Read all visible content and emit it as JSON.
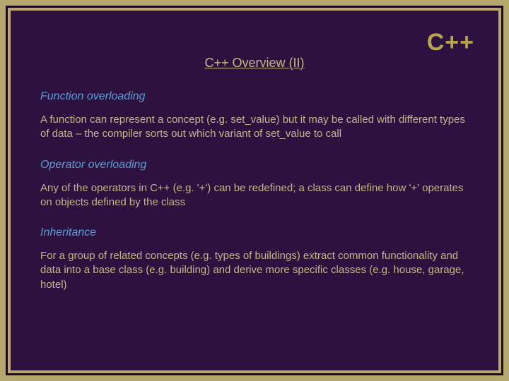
{
  "page": {
    "background_color": "#b8a870",
    "slide_background": "#2d1240",
    "border_color": "#1a0826",
    "text_color": "#c4b888",
    "heading_color": "#5a9fd4",
    "logo_color": "#b8a44a"
  },
  "logo": "C++",
  "title": "C++ Overview (II)",
  "sections": [
    {
      "heading": "Function overloading",
      "body": "A function can represent a concept (e.g. set_value) but it may be called with different types of data – the compiler sorts out which variant of set_value to call"
    },
    {
      "heading": "Operator overloading",
      "body": "Any of the operators in C++ (e.g. '+') can be redefined; a class can define how '+' operates on objects defined by the class"
    },
    {
      "heading": "Inheritance",
      "body": "For a group of related concepts (e.g. types of buildings) extract common functionality and data into a base class (e.g. building) and derive more specific classes (e.g. house, garage, hotel)"
    }
  ]
}
